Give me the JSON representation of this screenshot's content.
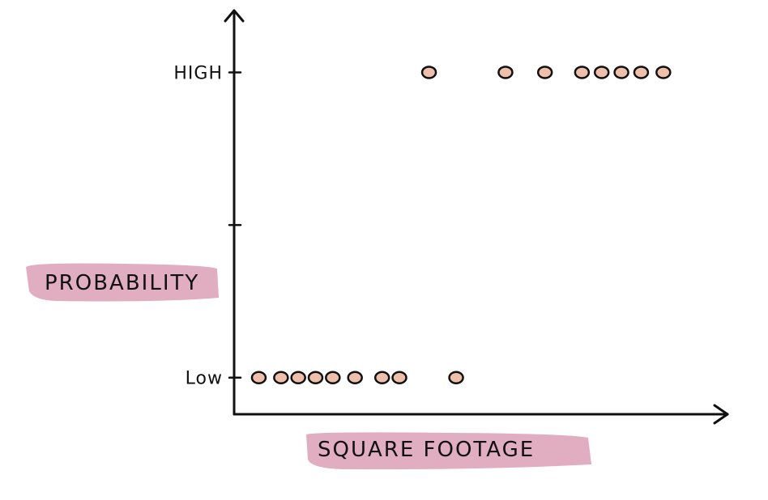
{
  "chart_data": {
    "type": "scatter",
    "title": "",
    "xlabel": "SQUARE FOOTAGE",
    "ylabel": "PROBABILITY",
    "xlim": [
      0,
      100
    ],
    "ylim": [
      -0.12,
      1.2
    ],
    "y_ticks": [
      {
        "value": 0,
        "label": "Low"
      },
      {
        "value": 0.5,
        "label": ""
      },
      {
        "value": 1,
        "label": "HIGH"
      }
    ],
    "grid": false,
    "legend": "none",
    "x_ticks_labeled": false,
    "series": [
      {
        "values": [
          {
            "x": 5,
            "y": 0
          },
          {
            "x": 9.5,
            "y": 0
          },
          {
            "x": 13,
            "y": 0
          },
          {
            "x": 16.5,
            "y": 0
          },
          {
            "x": 20,
            "y": 0
          },
          {
            "x": 24.5,
            "y": 0
          },
          {
            "x": 30,
            "y": 0
          },
          {
            "x": 33.5,
            "y": 0
          },
          {
            "x": 45,
            "y": 0
          },
          {
            "x": 39.5,
            "y": 1
          },
          {
            "x": 55,
            "y": 1
          },
          {
            "x": 63,
            "y": 1
          },
          {
            "x": 70.5,
            "y": 1
          },
          {
            "x": 74.5,
            "y": 1
          },
          {
            "x": 78.5,
            "y": 1
          },
          {
            "x": 82.5,
            "y": 1
          },
          {
            "x": 87,
            "y": 1
          }
        ]
      }
    ],
    "colors": {
      "point_fill": "#eec0ab",
      "point_stroke": "#111111",
      "label_highlight": "#dfa9bd",
      "axis": "#111111"
    }
  }
}
